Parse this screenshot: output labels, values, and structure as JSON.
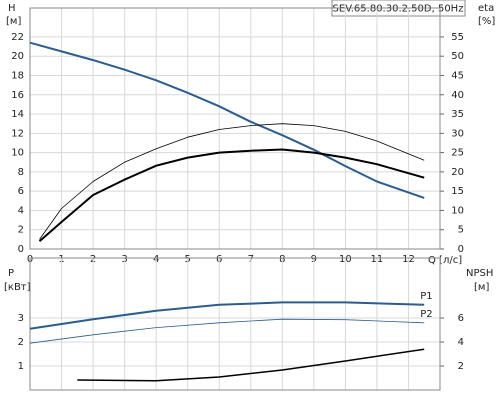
{
  "chart_data": [
    {
      "type": "line",
      "title": "SEV.65.80.30.2.50D, 50Hz",
      "ylabel": "H",
      "yunit": "[м]",
      "y2label": "eta",
      "y2unit": "[%]",
      "xlabel": "Q [л/с]",
      "xlim": [
        0,
        13
      ],
      "xticks": [
        0,
        1,
        2,
        3,
        4,
        5,
        6,
        7,
        8,
        9,
        10,
        11,
        12
      ],
      "ylim": [
        0,
        25
      ],
      "yticks": [
        0,
        2,
        4,
        6,
        8,
        10,
        12,
        14,
        16,
        18,
        20,
        22
      ],
      "y2lim": [
        0,
        62.5
      ],
      "y2ticks": [
        0,
        5,
        10,
        15,
        20,
        25,
        30,
        35,
        40,
        45,
        50,
        55
      ],
      "grid": true,
      "series": [
        {
          "color": "#2c5d8f",
          "width": 2,
          "x": [
            0,
            1,
            2,
            3,
            4,
            5,
            6,
            7,
            8,
            9,
            10,
            11,
            12.5
          ],
          "values": [
            21.4,
            20.5,
            19.6,
            18.6,
            17.5,
            16.2,
            14.8,
            13.2,
            11.8,
            10.3,
            8.6,
            7.0,
            5.3
          ]
        },
        {
          "color": "#000000",
          "width": 2,
          "axis": "y2",
          "x": [
            0.3,
            1,
            2,
            3,
            4,
            5,
            6,
            7,
            8,
            9,
            10,
            11,
            12.5
          ],
          "values": [
            2,
            7,
            14,
            18,
            21.6,
            23.7,
            25,
            25.5,
            25.8,
            25,
            23.7,
            22,
            18.5
          ]
        },
        {
          "color": "#000000",
          "width": 0.8,
          "axis": "y2",
          "x": [
            0.3,
            1,
            2,
            3,
            4,
            5,
            6,
            7,
            8,
            9,
            10,
            11,
            12.5
          ],
          "values": [
            2.5,
            10.5,
            17.5,
            22.5,
            26,
            29,
            31,
            32,
            32.5,
            32,
            30.5,
            28,
            23
          ]
        }
      ]
    },
    {
      "type": "line",
      "ylabel": "P",
      "yunit": "[кВт]",
      "y2label": "NPSH",
      "y2unit": "[м]",
      "xlim": [
        0,
        13
      ],
      "xticks": [
        0,
        1,
        2,
        3,
        4,
        5,
        6,
        7,
        8,
        9,
        10,
        11,
        12
      ],
      "x_tick_labels": false,
      "ylim": [
        0,
        5.5
      ],
      "yticks": [
        1,
        2,
        3
      ],
      "y2lim": [
        0,
        11
      ],
      "y2ticks": [
        2,
        4,
        6
      ],
      "grid": true,
      "series": [
        {
          "name": "P1",
          "color": "#2c5d8f",
          "width": 2,
          "x": [
            0,
            2,
            4,
            6,
            8,
            10,
            12.5
          ],
          "values": [
            2.55,
            2.95,
            3.3,
            3.55,
            3.65,
            3.65,
            3.55
          ]
        },
        {
          "name": "P2",
          "color": "#2c5d8f",
          "width": 0.8,
          "x": [
            0,
            2,
            4,
            6,
            8,
            10,
            12.5
          ],
          "values": [
            1.95,
            2.3,
            2.6,
            2.8,
            2.95,
            2.93,
            2.8
          ]
        },
        {
          "color": "#000000",
          "width": 1.5,
          "axis": "y2",
          "x": [
            1.5,
            4,
            6,
            8,
            10,
            12.5
          ],
          "values": [
            0.83,
            0.77,
            1.08,
            1.67,
            2.42,
            3.4
          ]
        }
      ]
    }
  ]
}
